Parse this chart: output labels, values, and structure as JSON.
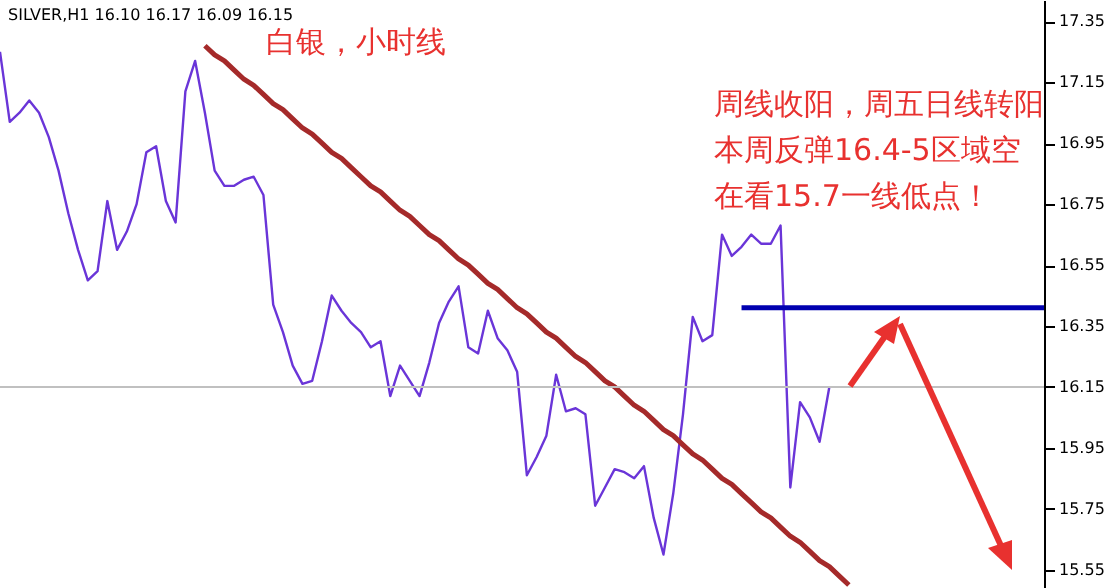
{
  "chart_data": {
    "type": "line",
    "title": "SILVER,H1 16.10 16.17 16.09 16.15",
    "annotations": [
      "白银，小时线",
      "周线收阳，周五日线转阳",
      "本周反弹16.4-5区域空",
      "在看15.7一线低点！"
    ],
    "categories": [
      null,
      null,
      null,
      null,
      null,
      null,
      null,
      null,
      null,
      null,
      null,
      null,
      null,
      null,
      null,
      null,
      null,
      null,
      null,
      null,
      null,
      null,
      null,
      null,
      null,
      null,
      null,
      null,
      null,
      null,
      null,
      null,
      null,
      null,
      null,
      null,
      null,
      null,
      null,
      null,
      null,
      null,
      null,
      null,
      null,
      null,
      null,
      null,
      null,
      null,
      null,
      null,
      null,
      null,
      null,
      null,
      null,
      null,
      null,
      null,
      null,
      null,
      null,
      null,
      null,
      null,
      null,
      null,
      null,
      null,
      null,
      null,
      null,
      null,
      null,
      null,
      null,
      null,
      null,
      null,
      null,
      null,
      null,
      null,
      null,
      null,
      null,
      null,
      null,
      null,
      null,
      null,
      null,
      null,
      null,
      null,
      null,
      null,
      null,
      null,
      null,
      null,
      null,
      null,
      null,
      null,
      null,
      null
    ],
    "ylim": [
      15.49,
      17.42
    ],
    "yticks": [
      15.55,
      15.75,
      15.95,
      16.15,
      16.35,
      16.55,
      16.75,
      16.95,
      17.15,
      17.35
    ],
    "tick_labels": "y",
    "ref_lines": [
      {
        "axis": "y",
        "value": 16.15,
        "color": "#c0c0c0"
      }
    ],
    "series": [
      {
        "color": "#6a35d8",
        "values": [
          17.25,
          17.02,
          17.05,
          17.09,
          17.05,
          16.97,
          16.86,
          16.72,
          16.6,
          16.5,
          16.53,
          16.76,
          16.6,
          16.66,
          16.75,
          16.92,
          16.94,
          16.76,
          16.69,
          17.12,
          17.22,
          17.05,
          16.86,
          16.81,
          16.81,
          16.83,
          16.84,
          16.78,
          16.42,
          16.33,
          16.22,
          16.16,
          16.17,
          16.3,
          16.45,
          16.4,
          16.36,
          16.33,
          16.28,
          16.3,
          16.12,
          16.22,
          16.17,
          16.12,
          16.23,
          16.36,
          16.43,
          16.48,
          16.28,
          16.26,
          16.4,
          16.31,
          16.27,
          16.2,
          15.86,
          15.92,
          15.99,
          16.19,
          16.07,
          16.08,
          16.06,
          15.76,
          15.82,
          15.88,
          15.87,
          15.85,
          15.89,
          15.72,
          15.6,
          15.8,
          16.06,
          16.38,
          16.3,
          16.32,
          16.65,
          16.58,
          16.61,
          16.65,
          16.62,
          16.62,
          16.68,
          15.82,
          16.1,
          16.05,
          15.97,
          16.15,
          null,
          null,
          null,
          null,
          null,
          null,
          null,
          null,
          null,
          null,
          null,
          null,
          null,
          null,
          null,
          null,
          null,
          null,
          null,
          null,
          null,
          null
        ]
      },
      {
        "color": "#a52a2a",
        "values": [
          null,
          null,
          null,
          null,
          null,
          null,
          null,
          null,
          null,
          null,
          null,
          null,
          null,
          null,
          null,
          null,
          null,
          null,
          null,
          null,
          null,
          17.27,
          17.24,
          17.22,
          17.19,
          17.16,
          17.14,
          17.11,
          17.08,
          17.06,
          17.03,
          17.0,
          16.98,
          16.95,
          16.92,
          16.9,
          16.87,
          16.84,
          16.81,
          16.79,
          16.76,
          16.73,
          16.71,
          16.68,
          16.65,
          16.63,
          16.6,
          16.57,
          16.55,
          16.52,
          16.49,
          16.47,
          16.44,
          16.41,
          16.39,
          16.36,
          16.33,
          16.31,
          16.28,
          16.25,
          16.23,
          16.2,
          16.17,
          16.15,
          16.12,
          16.09,
          16.07,
          16.04,
          16.01,
          15.99,
          15.96,
          15.93,
          15.91,
          15.88,
          15.85,
          15.83,
          15.8,
          15.77,
          15.74,
          15.72,
          15.69,
          15.66,
          15.64,
          15.61,
          15.58,
          15.56,
          15.53,
          15.5,
          null,
          null,
          null,
          null,
          null,
          null,
          null,
          null,
          null,
          null,
          null,
          null,
          null,
          null,
          null,
          null,
          null,
          null,
          null,
          null
        ]
      },
      {
        "color": "#0000b0",
        "values": [
          null,
          null,
          null,
          null,
          null,
          null,
          null,
          null,
          null,
          null,
          null,
          null,
          null,
          null,
          null,
          null,
          null,
          null,
          null,
          null,
          null,
          null,
          null,
          null,
          null,
          null,
          null,
          null,
          null,
          null,
          null,
          null,
          null,
          null,
          null,
          null,
          null,
          null,
          null,
          null,
          null,
          null,
          null,
          null,
          null,
          null,
          null,
          null,
          null,
          null,
          null,
          null,
          null,
          null,
          null,
          null,
          null,
          null,
          null,
          null,
          null,
          null,
          null,
          null,
          null,
          null,
          null,
          null,
          null,
          null,
          null,
          null,
          null,
          null,
          null,
          null,
          16.41,
          16.41,
          16.41,
          16.41,
          16.41,
          16.41,
          16.41,
          16.41,
          16.41,
          16.41,
          16.41,
          16.41,
          16.41,
          16.41,
          16.41,
          16.41,
          16.41,
          16.41,
          16.41,
          16.41,
          16.41,
          16.41,
          16.41,
          16.41,
          16.41,
          16.41,
          16.41,
          16.41,
          16.41,
          16.41,
          16.41,
          16.41
        ]
      }
    ]
  }
}
